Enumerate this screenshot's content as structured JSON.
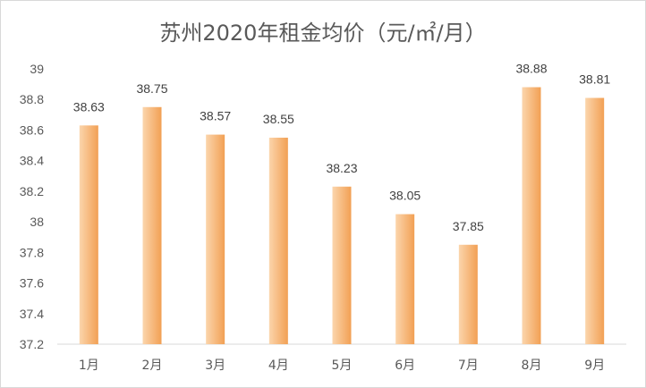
{
  "chart_data": {
    "type": "bar",
    "title": "苏州2020年租金均价（元/㎡/月）",
    "categories": [
      "1月",
      "2月",
      "3月",
      "4月",
      "5月",
      "6月",
      "7月",
      "8月",
      "9月"
    ],
    "values": [
      38.63,
      38.75,
      38.57,
      38.55,
      38.23,
      38.05,
      37.85,
      38.88,
      38.81
    ],
    "data_labels": [
      "38.63",
      "38.75",
      "38.57",
      "38.55",
      "38.23",
      "38.05",
      "37.85",
      "38.88",
      "38.81"
    ],
    "ylim": [
      37.2,
      39
    ],
    "yticks": [
      "37.2",
      "37.4",
      "37.6",
      "37.8",
      "38",
      "38.2",
      "38.4",
      "38.6",
      "38.8",
      "39"
    ],
    "grid": false,
    "legend": "none",
    "colors": {
      "bar_light": "#fbd5ac",
      "bar_dark": "#f2a054",
      "axis": "#d9d9d9",
      "text": "#595959"
    }
  }
}
